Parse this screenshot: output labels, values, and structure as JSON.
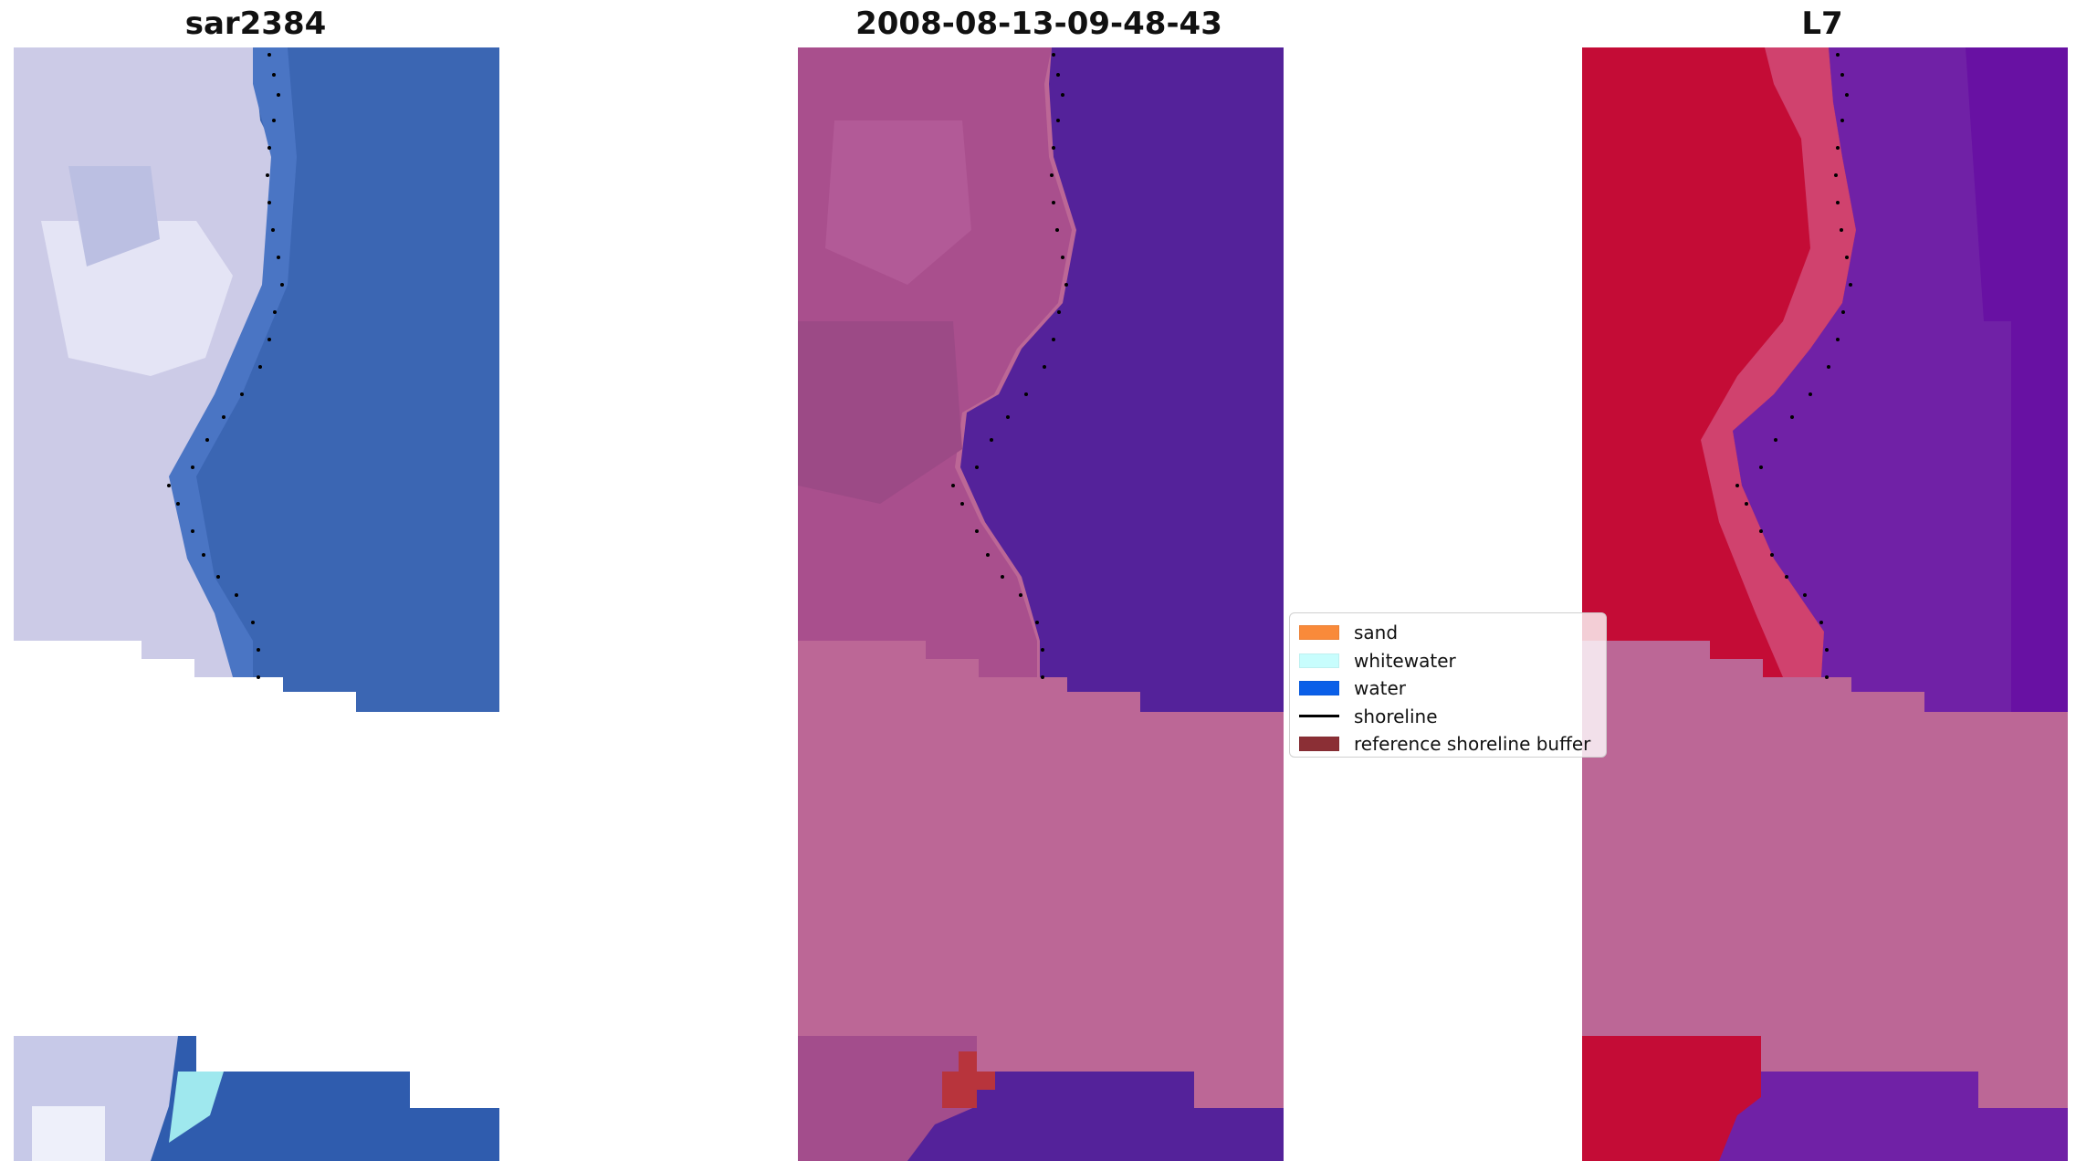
{
  "titles": {
    "left": "sar2384",
    "center": "2008-08-13-09-48-43",
    "right": "L7"
  },
  "legend": {
    "items": [
      {
        "label": "sand",
        "color": "#f98a3a",
        "kind": "patch"
      },
      {
        "label": "whitewater",
        "color": "#c8fdfd",
        "kind": "patch"
      },
      {
        "label": "water",
        "color": "#0a5fe8",
        "kind": "patch"
      },
      {
        "label": "shoreline",
        "color": "#000000",
        "kind": "line"
      },
      {
        "label": "reference shoreline buffer",
        "color": "#8b2f35",
        "kind": "patch"
      }
    ]
  },
  "colors": {
    "rgb_sand": "#ccccec",
    "rgb_water": "#2f5aa8",
    "class_sand": "#a7508d",
    "class_water": "#54229a",
    "class_nodata": "#bc6796",
    "class_buffer": "#b8343c",
    "ndwi_land": "#c20a35",
    "ndwi_water": "#7020a6",
    "ndwi_nodata": "#bc6796"
  }
}
